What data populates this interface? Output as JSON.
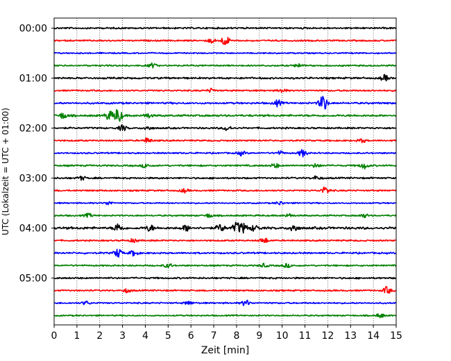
{
  "chart_data": {
    "type": "line",
    "title": "",
    "xlabel": "Zeit  [min]",
    "ylabel": "UTC (Lokalzeit = UTC + 01:00)",
    "xlim": [
      0,
      15
    ],
    "x_ticks": [
      "0",
      "1",
      "2",
      "3",
      "4",
      "5",
      "6",
      "7",
      "8",
      "9",
      "10",
      "11",
      "12",
      "13",
      "14",
      "15"
    ],
    "y_tick_labels": [
      "00:00",
      "01:00",
      "02:00",
      "03:00",
      "04:00",
      "05:00"
    ],
    "grid": "vertical dotted lines at each minute",
    "legend": "none",
    "trace_colors": [
      "#000000",
      "#ff0000",
      "#0000ff",
      "#008000"
    ],
    "trace_interval_min": 15,
    "series": [
      {
        "start": "00:00",
        "color": "#000000",
        "events": [],
        "noise": 1.0
      },
      {
        "start": "00:15",
        "color": "#ff0000",
        "events": [
          [
            7.5,
            7
          ],
          [
            6.9,
            3
          ]
        ],
        "noise": 0.9
      },
      {
        "start": "00:30",
        "color": "#0000ff",
        "events": [],
        "noise": 0.8
      },
      {
        "start": "00:45",
        "color": "#008000",
        "events": [
          [
            4.3,
            3
          ],
          [
            10.7,
            2.5
          ]
        ],
        "noise": 0.9
      },
      {
        "start": "01:00",
        "color": "#000000",
        "events": [
          [
            14.5,
            4
          ]
        ],
        "noise": 1.1
      },
      {
        "start": "01:15",
        "color": "#ff0000",
        "events": [
          [
            6.9,
            2.5
          ],
          [
            10.0,
            2.5
          ]
        ],
        "noise": 0.9
      },
      {
        "start": "01:30",
        "color": "#0000ff",
        "events": [
          [
            11.8,
            11
          ],
          [
            9.8,
            4
          ]
        ],
        "noise": 1.1
      },
      {
        "start": "01:45",
        "color": "#008000",
        "events": [
          [
            2.8,
            10
          ],
          [
            2.4,
            6
          ],
          [
            0.4,
            4
          ],
          [
            4.1,
            3
          ]
        ],
        "noise": 1.2
      },
      {
        "start": "02:00",
        "color": "#000000",
        "events": [
          [
            3.0,
            4
          ],
          [
            7.6,
            3.5
          ],
          [
            4.1,
            2.5
          ]
        ],
        "noise": 1.0
      },
      {
        "start": "02:15",
        "color": "#ff0000",
        "events": [
          [
            4.1,
            3.5
          ],
          [
            13.5,
            2.5
          ]
        ],
        "noise": 0.9
      },
      {
        "start": "02:30",
        "color": "#0000ff",
        "events": [
          [
            10.9,
            5
          ],
          [
            8.2,
            3
          ],
          [
            9.9,
            2.5
          ]
        ],
        "noise": 0.9
      },
      {
        "start": "02:45",
        "color": "#008000",
        "events": [
          [
            13.6,
            4
          ],
          [
            9.7,
            3
          ],
          [
            11.5,
            2.5
          ],
          [
            4.0,
            2.5
          ]
        ],
        "noise": 1.0
      },
      {
        "start": "03:00",
        "color": "#000000",
        "events": [
          [
            1.2,
            2.5
          ],
          [
            11.5,
            2.5
          ]
        ],
        "noise": 1.0
      },
      {
        "start": "03:15",
        "color": "#ff0000",
        "events": [
          [
            11.9,
            5
          ],
          [
            5.7,
            2.5
          ]
        ],
        "noise": 0.9
      },
      {
        "start": "03:30",
        "color": "#0000ff",
        "events": [
          [
            2.4,
            2.5
          ],
          [
            9.9,
            2.5
          ]
        ],
        "noise": 0.8
      },
      {
        "start": "03:45",
        "color": "#008000",
        "events": [
          [
            1.5,
            2.5
          ],
          [
            6.8,
            2.5
          ],
          [
            10.3,
            2.5
          ],
          [
            13.6,
            2.5
          ]
        ],
        "noise": 0.9
      },
      {
        "start": "04:00",
        "color": "#000000",
        "events": [
          [
            2.8,
            6
          ],
          [
            7.3,
            5
          ],
          [
            8.0,
            7
          ],
          [
            8.3,
            6
          ],
          [
            10.5,
            5
          ],
          [
            4.2,
            4
          ],
          [
            5.8,
            4
          ],
          [
            8.8,
            4
          ]
        ],
        "noise": 1.4
      },
      {
        "start": "04:15",
        "color": "#ff0000",
        "events": [
          [
            9.2,
            4
          ],
          [
            3.5,
            2.5
          ]
        ],
        "noise": 0.9
      },
      {
        "start": "04:30",
        "color": "#0000ff",
        "events": [
          [
            2.8,
            6
          ],
          [
            3.5,
            4
          ]
        ],
        "noise": 1.0
      },
      {
        "start": "04:45",
        "color": "#008000",
        "events": [
          [
            5.0,
            3
          ],
          [
            9.2,
            2.5
          ],
          [
            10.2,
            2.5
          ]
        ],
        "noise": 0.9
      },
      {
        "start": "05:00",
        "color": "#000000",
        "events": [],
        "noise": 1.0
      },
      {
        "start": "05:15",
        "color": "#ff0000",
        "events": [
          [
            14.6,
            5
          ],
          [
            3.2,
            2.5
          ]
        ],
        "noise": 0.9
      },
      {
        "start": "05:30",
        "color": "#0000ff",
        "events": [
          [
            8.4,
            4
          ],
          [
            5.9,
            2.5
          ],
          [
            1.4,
            2.5
          ]
        ],
        "noise": 0.9
      },
      {
        "start": "05:45",
        "color": "#008000",
        "events": [
          [
            14.3,
            3
          ]
        ],
        "noise": 0.8
      }
    ]
  }
}
